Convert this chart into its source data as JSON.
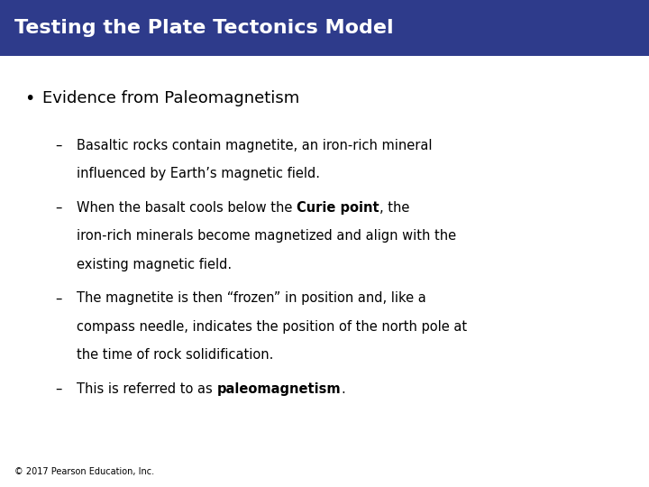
{
  "title": "Testing the Plate Tectonics Model",
  "title_bg_color": "#2E3B8B",
  "title_text_color": "#FFFFFF",
  "slide_bg_color": "#FFFFFF",
  "bullet_text": "Evidence from Paleomagnetism",
  "sub_bullets": [
    {
      "text_parts": [
        {
          "text": "Basaltic rocks contain magnetite, an iron-rich mineral\ninfluenced by Earth’s magnetic field.",
          "bold": false
        }
      ]
    },
    {
      "text_parts": [
        {
          "text": "When the basalt cools below the ",
          "bold": false
        },
        {
          "text": "Curie point",
          "bold": true
        },
        {
          "text": ", the\niron-rich minerals become magnetized and align with the\nexisting magnetic field.",
          "bold": false
        }
      ]
    },
    {
      "text_parts": [
        {
          "text": "The magnetite is then “frozen” in position and, like a\ncompass needle, indicates the position of the north pole at\nthe time of rock solidification.",
          "bold": false
        }
      ]
    },
    {
      "text_parts": [
        {
          "text": "This is referred to as ",
          "bold": false
        },
        {
          "text": "paleomagnetism",
          "bold": true
        },
        {
          "text": ".",
          "bold": false
        }
      ]
    }
  ],
  "footer_text": "© 2017 Pearson Education, Inc.",
  "title_fontsize": 16,
  "bullet_fontsize": 13,
  "sub_bullet_fontsize": 10.5,
  "footer_fontsize": 7
}
